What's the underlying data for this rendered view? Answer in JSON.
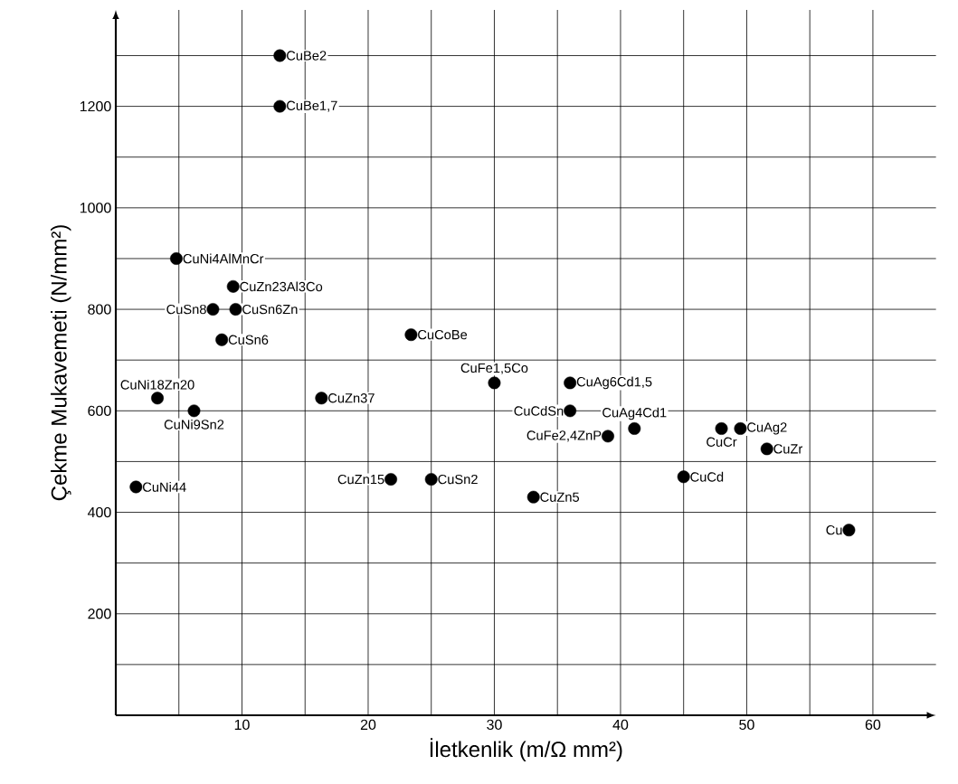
{
  "chart_data": {
    "type": "scatter",
    "xlabel": "İletkenlik (m/Ω mm²)",
    "ylabel": "Çekme Mukavemeti (N/mm²)",
    "x": [
      13,
      13,
      4.8,
      9.3,
      7.7,
      9.5,
      8.4,
      23.4,
      3.3,
      6.2,
      16.3,
      30,
      36,
      36,
      41.1,
      39,
      48,
      49.5,
      51.6,
      1.6,
      21.8,
      25,
      45,
      33.1,
      58.1
    ],
    "series": [
      {
        "color": "#000000",
        "values": [
          1300,
          1200,
          900,
          845,
          800,
          800,
          740,
          750,
          625,
          600,
          625,
          655,
          655,
          600,
          565,
          550,
          565,
          565,
          525,
          450,
          465,
          465,
          470,
          430,
          365
        ]
      }
    ],
    "annotations": [
      {
        "text": "CuBe2",
        "x": 13,
        "y": 1300
      },
      {
        "text": "CuBe1,7",
        "x": 13,
        "y": 1200
      },
      {
        "text": "CuNi4AlMnCr",
        "x": 4.8,
        "y": 900
      },
      {
        "text": "CuZn23Al3Co",
        "x": 9.3,
        "y": 845
      },
      {
        "text": "CuSn8",
        "x": 7.7,
        "y": 800
      },
      {
        "text": "CuSn6Zn",
        "x": 9.5,
        "y": 800
      },
      {
        "text": "CuSn6",
        "x": 8.4,
        "y": 740
      },
      {
        "text": "CuCoBe",
        "x": 23.4,
        "y": 750
      },
      {
        "text": "CuNi18Zn20",
        "x": 3.3,
        "y": 625
      },
      {
        "text": "CuNi9Sn2",
        "x": 6.2,
        "y": 600
      },
      {
        "text": "CuZn37",
        "x": 16.3,
        "y": 625
      },
      {
        "text": "CuFe1,5Co",
        "x": 30,
        "y": 655
      },
      {
        "text": "CuAg6Cd1,5",
        "x": 36,
        "y": 655
      },
      {
        "text": "CuCdSn",
        "x": 36,
        "y": 600
      },
      {
        "text": "CuAg4Cd1",
        "x": 41.1,
        "y": 565
      },
      {
        "text": "CuFe2,4ZnP",
        "x": 39,
        "y": 550
      },
      {
        "text": "CuCr",
        "x": 48,
        "y": 565
      },
      {
        "text": "CuAg2",
        "x": 49.5,
        "y": 565
      },
      {
        "text": "CuZr",
        "x": 51.6,
        "y": 525
      },
      {
        "text": "CuNi44",
        "x": 1.6,
        "y": 450
      },
      {
        "text": "CuZn15",
        "x": 21.8,
        "y": 465
      },
      {
        "text": "CuSn2",
        "x": 25,
        "y": 465
      },
      {
        "text": "CuCd",
        "x": 45,
        "y": 470
      },
      {
        "text": "CuZn5",
        "x": 33.1,
        "y": 430
      },
      {
        "text": "Cu",
        "x": 58.1,
        "y": 365
      }
    ],
    "xlim": [
      0,
      65
    ],
    "ylim": [
      0,
      1390
    ],
    "xticks": [
      {
        "value": 5,
        "label": null
      },
      10,
      {
        "value": 15,
        "label": null
      },
      20,
      {
        "value": 25,
        "label": null
      },
      30,
      {
        "value": 35,
        "label": null
      },
      40,
      {
        "value": 45,
        "label": null
      },
      50,
      {
        "value": 55,
        "label": null
      },
      60
    ],
    "yticks": [
      {
        "value": 100,
        "label": null
      },
      200,
      {
        "value": 300,
        "label": null
      },
      400,
      {
        "value": 500,
        "label": null
      },
      600,
      {
        "value": 700,
        "label": null
      },
      800,
      {
        "value": 900,
        "label": null
      },
      1000,
      {
        "value": 1100,
        "label": null
      },
      1200,
      {
        "value": 1300,
        "label": null
      }
    ],
    "grid": true,
    "marker": "circle"
  }
}
